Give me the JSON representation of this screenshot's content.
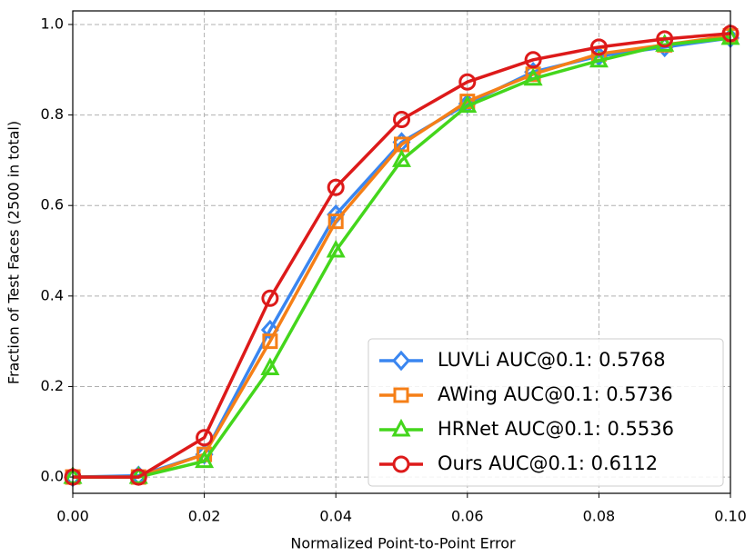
{
  "chart_data": {
    "type": "line",
    "x_label": "Normalized Point-to-Point Error",
    "y_label": "Fraction of Test Faces (2500 in total)",
    "x": [
      0,
      0.01,
      0.02,
      0.03,
      0.04,
      0.05,
      0.06,
      0.07,
      0.08,
      0.09,
      0.1
    ],
    "series": [
      {
        "name": "LUVLi AUC@0.1: 0.5768",
        "color": "#3a86f0",
        "marker": "diamond",
        "values": [
          0,
          0.003,
          0.05,
          0.325,
          0.58,
          0.74,
          0.825,
          0.895,
          0.93,
          0.95,
          0.97
        ]
      },
      {
        "name": "AWing AUC@0.1: 0.5736",
        "color": "#f57f17",
        "marker": "square",
        "values": [
          0,
          0,
          0.05,
          0.3,
          0.565,
          0.735,
          0.83,
          0.89,
          0.935,
          0.955,
          0.975
        ]
      },
      {
        "name": "HRNet AUC@0.1: 0.5536",
        "color": "#44d61c",
        "marker": "triangle",
        "values": [
          0,
          0,
          0.035,
          0.24,
          0.5,
          0.7,
          0.82,
          0.88,
          0.92,
          0.955,
          0.97
        ]
      },
      {
        "name": "Ours AUC@0.1: 0.6112",
        "color": "#dd1a1a",
        "marker": "circle",
        "values": [
          0,
          0,
          0.087,
          0.395,
          0.64,
          0.79,
          0.873,
          0.922,
          0.95,
          0.968,
          0.98
        ]
      }
    ],
    "xlim": [
      0,
      0.1
    ],
    "ylim": [
      -0.036,
      1.03
    ],
    "xticks": [
      {
        "value": 0,
        "label": "0.00"
      },
      {
        "value": 0.02,
        "label": "0.02"
      },
      {
        "value": 0.04,
        "label": "0.04"
      },
      {
        "value": 0.06,
        "label": "0.06"
      },
      {
        "value": 0.08,
        "label": "0.08"
      },
      {
        "value": 0.1,
        "label": "0.10"
      }
    ],
    "yticks": [
      {
        "value": 0,
        "label": "0.0"
      },
      {
        "value": 0.2,
        "label": "0.2"
      },
      {
        "value": 0.4,
        "label": "0.4"
      },
      {
        "value": 0.6,
        "label": "0.6"
      },
      {
        "value": 0.8,
        "label": "0.8"
      },
      {
        "value": 1,
        "label": "1.0"
      }
    ],
    "grid": true,
    "legend_position": "lower right"
  }
}
